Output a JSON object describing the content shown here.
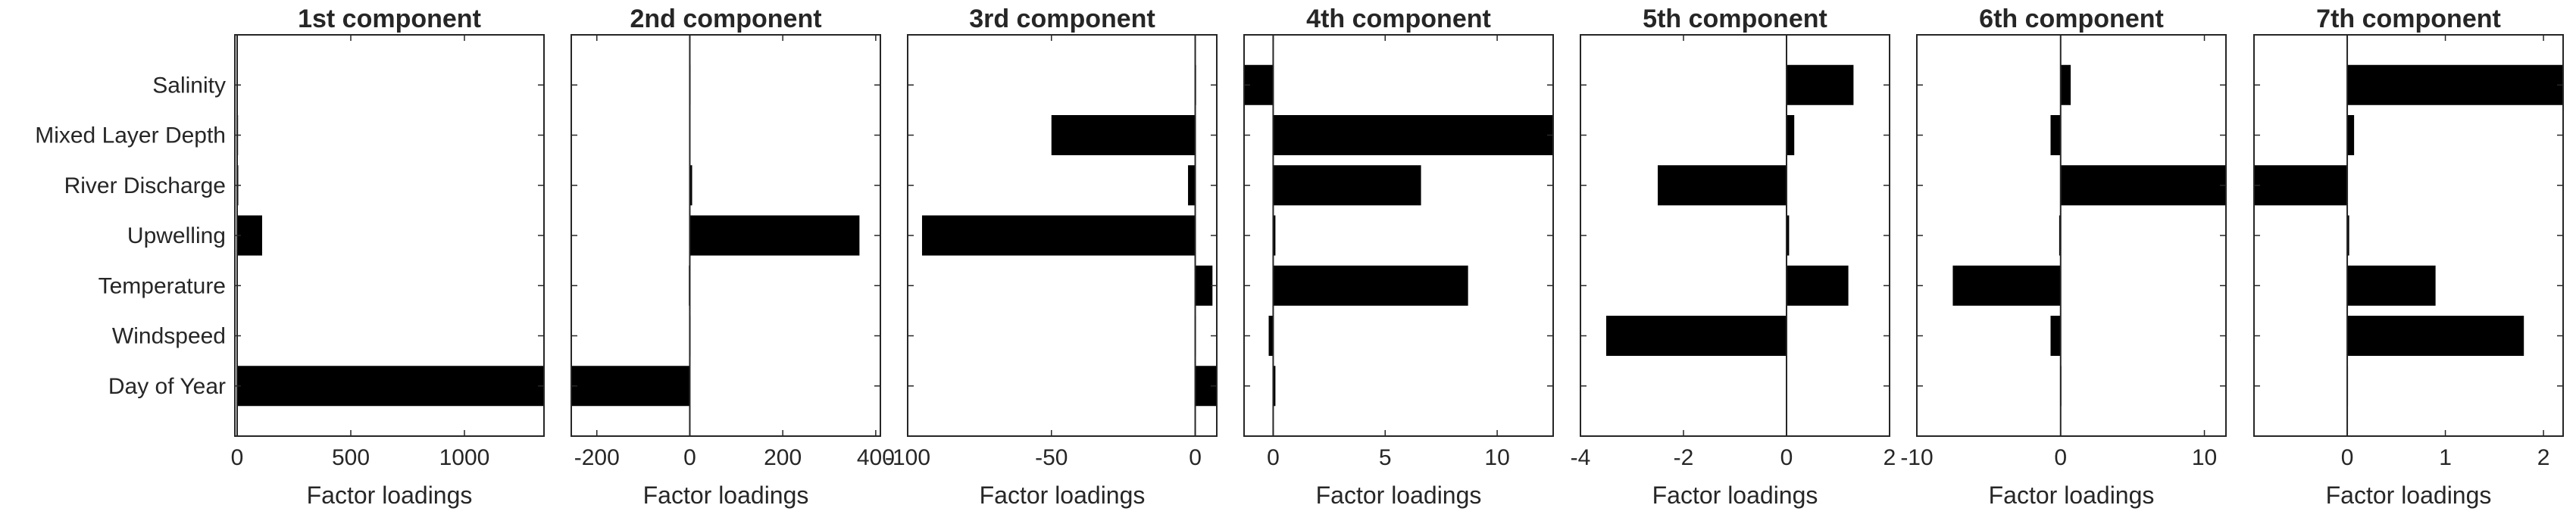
{
  "chart_data": [
    {
      "type": "bar",
      "orientation": "horizontal",
      "title": "1st component",
      "xlabel": "Factor loadings",
      "categories": [
        "Salinity",
        "Mixed Layer Depth",
        "River Discharge",
        "Upwelling",
        "Temperature",
        "Windspeed",
        "Day of Year"
      ],
      "values": [
        2,
        4,
        5,
        110,
        3,
        3,
        1350
      ],
      "xlim": [
        -10,
        1350
      ],
      "xticks": [
        0,
        500,
        1000
      ],
      "xtick_labels": [
        "0",
        "500",
        "1000"
      ]
    },
    {
      "type": "bar",
      "orientation": "horizontal",
      "title": "2nd component",
      "xlabel": "Factor loadings",
      "categories": [
        "Salinity",
        "Mixed Layer Depth",
        "River Discharge",
        "Upwelling",
        "Temperature",
        "Windspeed",
        "Day of Year"
      ],
      "values": [
        0,
        -1,
        5,
        365,
        -2,
        0,
        -255
      ],
      "xlim": [
        -255,
        410
      ],
      "xticks": [
        -200,
        0,
        200,
        400
      ],
      "xtick_labels": [
        "-200",
        "0",
        "200",
        "400"
      ]
    },
    {
      "type": "bar",
      "orientation": "horizontal",
      "title": "3rd component",
      "xlabel": "Factor loadings",
      "categories": [
        "Salinity",
        "Mixed Layer Depth",
        "River Discharge",
        "Upwelling",
        "Temperature",
        "Windspeed",
        "Day of Year"
      ],
      "values": [
        0.3,
        -50,
        -2.5,
        -95,
        6,
        0,
        7.5
      ],
      "xlim": [
        -100,
        7.5
      ],
      "xticks": [
        -100,
        -50,
        0
      ],
      "xtick_labels": [
        "-100",
        "-50",
        "0"
      ]
    },
    {
      "type": "bar",
      "orientation": "horizontal",
      "title": "4th component",
      "xlabel": "Factor loadings",
      "categories": [
        "Salinity",
        "Mixed Layer Depth",
        "River Discharge",
        "Upwelling",
        "Temperature",
        "Windspeed",
        "Day of Year"
      ],
      "values": [
        -1.3,
        12.5,
        6.6,
        0.1,
        8.7,
        -0.2,
        0.1
      ],
      "xlim": [
        -1.3,
        12.5
      ],
      "xticks": [
        0,
        5,
        10
      ],
      "xtick_labels": [
        "0",
        "5",
        "10"
      ]
    },
    {
      "type": "bar",
      "orientation": "horizontal",
      "title": "5th component",
      "xlabel": "Factor loadings",
      "categories": [
        "Salinity",
        "Mixed Layer Depth",
        "River Discharge",
        "Upwelling",
        "Temperature",
        "Windspeed",
        "Day of Year"
      ],
      "values": [
        1.3,
        0.15,
        -2.5,
        0.05,
        1.2,
        -3.5,
        0
      ],
      "xlim": [
        -4,
        2
      ],
      "xticks": [
        -4,
        -2,
        0,
        2
      ],
      "xtick_labels": [
        "-4",
        "-2",
        "0",
        "2"
      ]
    },
    {
      "type": "bar",
      "orientation": "horizontal",
      "title": "6th component",
      "xlabel": "Factor loadings",
      "categories": [
        "Salinity",
        "Mixed Layer Depth",
        "River Discharge",
        "Upwelling",
        "Temperature",
        "Windspeed",
        "Day of Year"
      ],
      "values": [
        0.7,
        -0.7,
        11.5,
        -0.1,
        -7.5,
        -0.7,
        0
      ],
      "xlim": [
        -10,
        11.5
      ],
      "xticks": [
        -10,
        0,
        10
      ],
      "xtick_labels": [
        "-10",
        "0",
        "10"
      ]
    },
    {
      "type": "bar",
      "orientation": "horizontal",
      "title": "7th component",
      "xlabel": "Factor loadings",
      "categories": [
        "Salinity",
        "Mixed Layer Depth",
        "River Discharge",
        "Upwelling",
        "Temperature",
        "Windspeed",
        "Day of Year"
      ],
      "values": [
        2.2,
        0.07,
        -0.95,
        0.02,
        0.9,
        1.8,
        0
      ],
      "xlim": [
        -0.95,
        2.2
      ],
      "xticks": [
        0,
        1,
        2
      ],
      "xtick_labels": [
        "0",
        "1",
        "2"
      ]
    }
  ]
}
